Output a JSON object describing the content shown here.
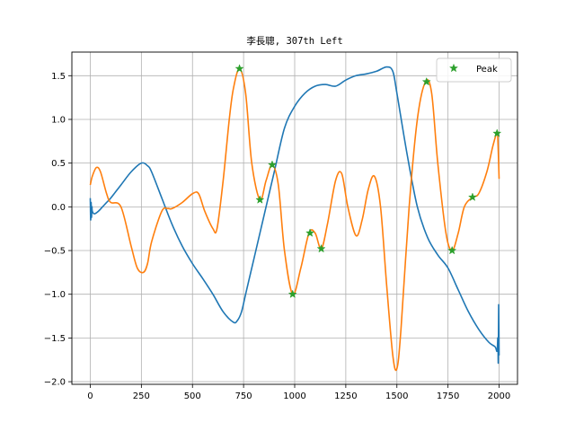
{
  "chart_data": {
    "type": "line",
    "title": "李長聰, 307th Left",
    "xlabel": "",
    "ylabel": "",
    "xlim": [
      -90,
      2090
    ],
    "ylim": [
      -2.03,
      1.77
    ],
    "xticks": [
      0,
      250,
      500,
      750,
      1000,
      1250,
      1500,
      1750,
      2000
    ],
    "xtick_labels": [
      "0",
      "250",
      "500",
      "750",
      "1000",
      "1250",
      "1500",
      "1750",
      "2000"
    ],
    "yticks": [
      -2.0,
      -1.5,
      -1.0,
      -0.5,
      0.0,
      0.5,
      1.0,
      1.5
    ],
    "ytick_labels": [
      "−2.0",
      "−1.5",
      "−1.0",
      "−0.5",
      "0.0",
      "0.5",
      "1.0",
      "1.5"
    ],
    "grid": true,
    "legend_position": "top-right",
    "legend": [
      "Peak"
    ],
    "series": [
      {
        "name": "",
        "color": "#1f77b4",
        "x": [
          0,
          2,
          4,
          6,
          8,
          10,
          20,
          40,
          60,
          80,
          100,
          150,
          200,
          250,
          280,
          300,
          350,
          400,
          450,
          500,
          550,
          600,
          650,
          700,
          720,
          740,
          760,
          780,
          800,
          850,
          900,
          950,
          1000,
          1050,
          1100,
          1150,
          1200,
          1250,
          1300,
          1350,
          1400,
          1450,
          1480,
          1500,
          1550,
          1600,
          1650,
          1700,
          1750,
          1800,
          1850,
          1900,
          1950,
          1980,
          1990,
          1994,
          1996,
          1998,
          2000
        ],
        "y": [
          0.1,
          -0.15,
          0.05,
          -0.12,
          0.0,
          -0.05,
          -0.08,
          -0.05,
          0.0,
          0.05,
          0.1,
          0.25,
          0.4,
          0.5,
          0.47,
          0.4,
          0.1,
          -0.2,
          -0.45,
          -0.65,
          -0.82,
          -1.0,
          -1.2,
          -1.32,
          -1.3,
          -1.2,
          -1.0,
          -0.8,
          -0.6,
          -0.1,
          0.4,
          0.9,
          1.15,
          1.3,
          1.38,
          1.4,
          1.38,
          1.45,
          1.5,
          1.52,
          1.55,
          1.6,
          1.55,
          1.3,
          0.6,
          0.0,
          -0.35,
          -0.55,
          -0.7,
          -0.95,
          -1.2,
          -1.4,
          -1.55,
          -1.6,
          -1.65,
          -1.5,
          -1.78,
          -1.12,
          -1.7
        ]
      },
      {
        "name": "",
        "color": "#ff7f0e",
        "x": [
          0,
          10,
          30,
          50,
          80,
          100,
          150,
          200,
          230,
          260,
          280,
          300,
          350,
          380,
          400,
          450,
          500,
          530,
          560,
          600,
          620,
          650,
          680,
          700,
          730,
          760,
          790,
          830,
          860,
          890,
          920,
          950,
          990,
          1030,
          1070,
          1100,
          1130,
          1160,
          1200,
          1230,
          1260,
          1300,
          1330,
          1360,
          1390,
          1420,
          1450,
          1480,
          1500,
          1520,
          1560,
          1600,
          1640,
          1670,
          1700,
          1740,
          1770,
          1800,
          1830,
          1870,
          1900,
          1940,
          1970,
          1990,
          1995,
          2000
        ],
        "y": [
          0.25,
          0.35,
          0.45,
          0.4,
          0.15,
          0.05,
          0.0,
          -0.45,
          -0.7,
          -0.75,
          -0.65,
          -0.4,
          -0.05,
          -0.02,
          -0.02,
          0.05,
          0.15,
          0.15,
          -0.05,
          -0.25,
          -0.25,
          0.3,
          1.0,
          1.35,
          1.58,
          1.3,
          0.5,
          0.08,
          0.3,
          0.48,
          0.25,
          -0.5,
          -1.0,
          -0.7,
          -0.3,
          -0.3,
          -0.48,
          -0.2,
          0.3,
          0.38,
          0.0,
          -0.33,
          -0.15,
          0.2,
          0.35,
          0.0,
          -0.9,
          -1.7,
          -1.85,
          -1.4,
          0.0,
          1.0,
          1.43,
          1.3,
          0.5,
          -0.3,
          -0.5,
          -0.3,
          0.0,
          0.11,
          0.15,
          0.4,
          0.7,
          0.84,
          0.7,
          0.32
        ]
      }
    ],
    "peaks": {
      "name": "Peak",
      "color": "#2ca02c",
      "marker": "star",
      "x": [
        730,
        830,
        890,
        990,
        1075,
        1130,
        1645,
        1770,
        1870,
        1990
      ],
      "y": [
        1.58,
        0.08,
        0.48,
        -1.0,
        -0.3,
        -0.48,
        1.43,
        -0.5,
        0.11,
        0.84
      ]
    }
  }
}
